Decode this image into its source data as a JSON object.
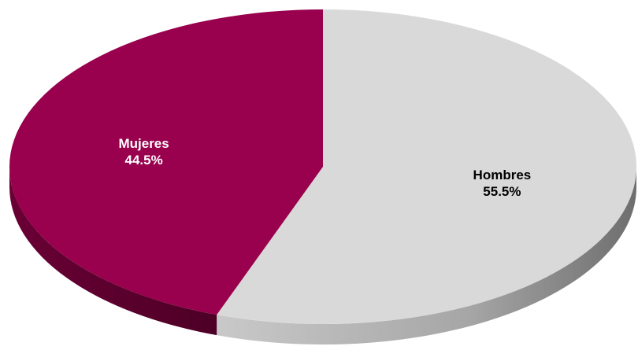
{
  "chart_data": {
    "type": "pie",
    "style": "3d",
    "slices": [
      {
        "label": "Hombres",
        "value": 55.5,
        "value_label": "55.5%",
        "color": "#d9d9d9",
        "side_color": "#8c8c8c",
        "label_color": "#000000"
      },
      {
        "label": "Mujeres",
        "value": 44.5,
        "value_label": "44.5%",
        "color": "#99004d",
        "side_color": "#5c002c",
        "label_color": "#ffffff"
      }
    ],
    "start_angle": "top",
    "direction": "clockwise",
    "legend": "none"
  }
}
